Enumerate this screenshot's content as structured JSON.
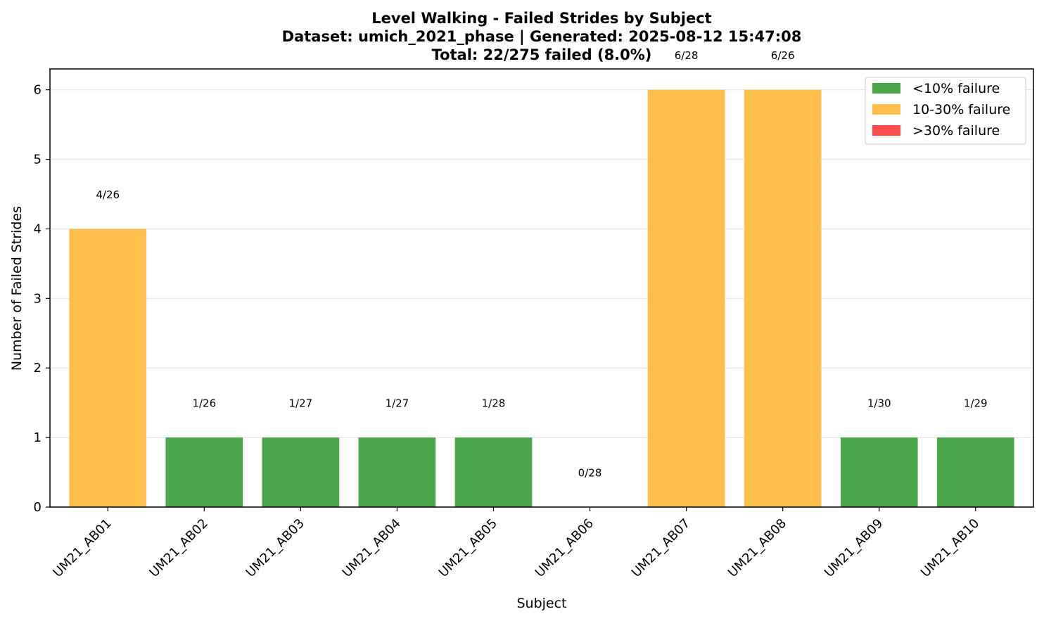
{
  "chart_data": {
    "type": "bar",
    "title_lines": [
      "Level Walking - Failed Strides by Subject",
      "Dataset: umich_2021_phase | Generated: 2025-08-12 15:47:08",
      "Total: 22/275 failed (8.0%)"
    ],
    "xlabel": "Subject",
    "ylabel": "Number of Failed Strides",
    "ylim": [
      0,
      6.3
    ],
    "yticks": [
      0,
      1,
      2,
      3,
      4,
      5,
      6
    ],
    "grid": "y",
    "categories": [
      "UM21_AB01",
      "UM21_AB02",
      "UM21_AB03",
      "UM21_AB04",
      "UM21_AB05",
      "UM21_AB06",
      "UM21_AB07",
      "UM21_AB08",
      "UM21_AB09",
      "UM21_AB10"
    ],
    "values": [
      4,
      1,
      1,
      1,
      1,
      0,
      6,
      6,
      1,
      1
    ],
    "data_labels": [
      "4/26",
      "1/26",
      "1/27",
      "1/27",
      "1/28",
      "0/28",
      "6/28",
      "6/26",
      "1/30",
      "1/29"
    ],
    "bar_groups": [
      "10-30%",
      "<10%",
      "<10%",
      "<10%",
      "<10%",
      "<10%",
      "10-30%",
      "10-30%",
      "<10%",
      "<10%"
    ],
    "legend": {
      "placement": "top-right",
      "entries": [
        {
          "key": "<10%",
          "label": "<10% failure",
          "color": "#4ca64c"
        },
        {
          "key": "10-30%",
          "label": "10-30% failure",
          "color": "#ffbf4c"
        },
        {
          "key": ">30%",
          "label": ">30% failure",
          "color": "#ff4c4c"
        }
      ]
    }
  }
}
